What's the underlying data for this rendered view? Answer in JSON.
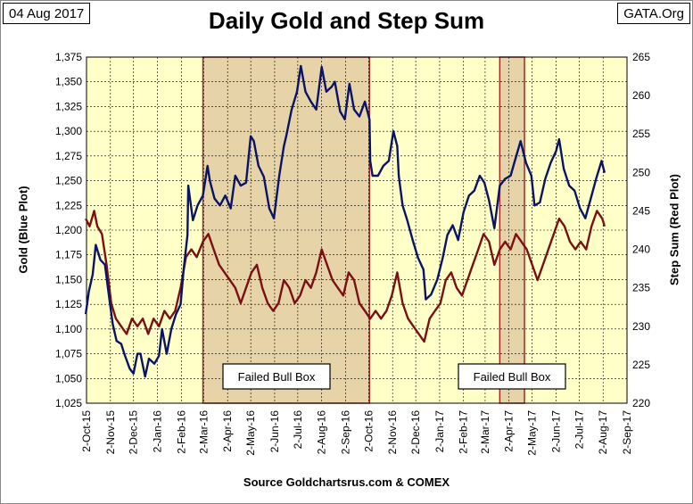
{
  "header": {
    "date": "04 Aug 2017",
    "title": "Daily Gold and Step Sum",
    "source_tag": "GATA.Org"
  },
  "footer": {
    "source": "Source Goldchartsrus.com & COMEX"
  },
  "colors": {
    "plot_bg": "#ffffc8",
    "box_fill": "#e6d3a8",
    "gold_line": "#0a1466",
    "step_line": "#7a1014",
    "box_border": "#a52a2a"
  },
  "chart_data": {
    "type": "line",
    "title": "Daily Gold and Step Sum",
    "x_tick_labels": [
      "2-Oct-15",
      "2-Nov-15",
      "2-Dec-15",
      "2-Jan-16",
      "2-Feb-16",
      "2-Mar-16",
      "2-Apr-16",
      "2-May-16",
      "2-Jun-16",
      "2-Jul-16",
      "2-Aug-16",
      "2-Sep-16",
      "2-Oct-16",
      "2-Nov-16",
      "2-Dec-16",
      "2-Jan-17",
      "2-Feb-17",
      "2-Mar-17",
      "2-Apr-17",
      "2-May-17",
      "2-Jun-17",
      "2-Jul-17",
      "2-Aug-17",
      "2-Sep-17"
    ],
    "y_left": {
      "label": "Gold   (Blue Plot)",
      "range": [
        1025,
        1375
      ],
      "ticks": [
        "1,025",
        "1,050",
        "1,075",
        "1,100",
        "1,125",
        "1,150",
        "1,175",
        "1,200",
        "1,225",
        "1,250",
        "1,275",
        "1,300",
        "1,325",
        "1,350",
        "1,375"
      ]
    },
    "y_right": {
      "label": "Step Sum   (Red Plot)",
      "range": [
        220,
        265
      ],
      "ticks": [
        "220",
        "225",
        "230",
        "235",
        "240",
        "245",
        "250",
        "255",
        "260",
        "265"
      ]
    },
    "grid": true,
    "series": [
      {
        "name": "Gold   (Blue Plot)",
        "axis": "left",
        "points": [
          [
            "2015-10-01",
            1115
          ],
          [
            "2015-10-05",
            1138
          ],
          [
            "2015-10-10",
            1155
          ],
          [
            "2015-10-14",
            1185
          ],
          [
            "2015-10-20",
            1170
          ],
          [
            "2015-10-26",
            1165
          ],
          [
            "2015-10-30",
            1140
          ],
          [
            "2015-11-05",
            1105
          ],
          [
            "2015-11-10",
            1088
          ],
          [
            "2015-11-16",
            1085
          ],
          [
            "2015-11-20",
            1075
          ],
          [
            "2015-11-27",
            1060
          ],
          [
            "2015-12-02",
            1055
          ],
          [
            "2015-12-07",
            1075
          ],
          [
            "2015-12-11",
            1075
          ],
          [
            "2015-12-17",
            1052
          ],
          [
            "2015-12-22",
            1070
          ],
          [
            "2015-12-29",
            1065
          ],
          [
            "2016-01-04",
            1073
          ],
          [
            "2016-01-08",
            1100
          ],
          [
            "2016-01-14",
            1075
          ],
          [
            "2016-01-20",
            1100
          ],
          [
            "2016-01-26",
            1115
          ],
          [
            "2016-02-01",
            1125
          ],
          [
            "2016-02-05",
            1160
          ],
          [
            "2016-02-10",
            1195
          ],
          [
            "2016-02-11",
            1245
          ],
          [
            "2016-02-17",
            1210
          ],
          [
            "2016-02-23",
            1225
          ],
          [
            "2016-03-01",
            1235
          ],
          [
            "2016-03-07",
            1265
          ],
          [
            "2016-03-10",
            1250
          ],
          [
            "2016-03-16",
            1232
          ],
          [
            "2016-03-23",
            1225
          ],
          [
            "2016-03-30",
            1235
          ],
          [
            "2016-04-06",
            1222
          ],
          [
            "2016-04-12",
            1255
          ],
          [
            "2016-04-19",
            1245
          ],
          [
            "2016-04-26",
            1248
          ],
          [
            "2016-05-02",
            1295
          ],
          [
            "2016-05-06",
            1290
          ],
          [
            "2016-05-12",
            1265
          ],
          [
            "2016-05-19",
            1254
          ],
          [
            "2016-05-26",
            1222
          ],
          [
            "2016-06-01",
            1212
          ],
          [
            "2016-06-08",
            1255
          ],
          [
            "2016-06-14",
            1285
          ],
          [
            "2016-06-17",
            1295
          ],
          [
            "2016-06-24",
            1322
          ],
          [
            "2016-07-01",
            1340
          ],
          [
            "2016-07-06",
            1366
          ],
          [
            "2016-07-12",
            1340
          ],
          [
            "2016-07-19",
            1330
          ],
          [
            "2016-07-26",
            1322
          ],
          [
            "2016-08-02",
            1365
          ],
          [
            "2016-08-08",
            1340
          ],
          [
            "2016-08-15",
            1345
          ],
          [
            "2016-08-19",
            1350
          ],
          [
            "2016-08-26",
            1320
          ],
          [
            "2016-09-01",
            1312
          ],
          [
            "2016-09-07",
            1348
          ],
          [
            "2016-09-13",
            1322
          ],
          [
            "2016-09-20",
            1315
          ],
          [
            "2016-09-27",
            1330
          ],
          [
            "2016-10-03",
            1312
          ],
          [
            "2016-10-04",
            1270
          ],
          [
            "2016-10-07",
            1255
          ],
          [
            "2016-10-14",
            1255
          ],
          [
            "2016-10-21",
            1265
          ],
          [
            "2016-10-28",
            1270
          ],
          [
            "2016-11-03",
            1300
          ],
          [
            "2016-11-08",
            1285
          ],
          [
            "2016-11-10",
            1255
          ],
          [
            "2016-11-15",
            1225
          ],
          [
            "2016-11-21",
            1210
          ],
          [
            "2016-11-28",
            1190
          ],
          [
            "2016-12-05",
            1172
          ],
          [
            "2016-12-12",
            1160
          ],
          [
            "2016-12-15",
            1130
          ],
          [
            "2016-12-22",
            1135
          ],
          [
            "2016-12-30",
            1150
          ],
          [
            "2017-01-06",
            1172
          ],
          [
            "2017-01-12",
            1195
          ],
          [
            "2017-01-19",
            1205
          ],
          [
            "2017-01-26",
            1190
          ],
          [
            "2017-02-02",
            1218
          ],
          [
            "2017-02-09",
            1235
          ],
          [
            "2017-02-16",
            1240
          ],
          [
            "2017-02-23",
            1255
          ],
          [
            "2017-03-01",
            1248
          ],
          [
            "2017-03-07",
            1230
          ],
          [
            "2017-03-14",
            1202
          ],
          [
            "2017-03-21",
            1245
          ],
          [
            "2017-03-28",
            1252
          ],
          [
            "2017-04-04",
            1255
          ],
          [
            "2017-04-11",
            1274
          ],
          [
            "2017-04-17",
            1290
          ],
          [
            "2017-04-24",
            1268
          ],
          [
            "2017-05-01",
            1255
          ],
          [
            "2017-05-05",
            1225
          ],
          [
            "2017-05-12",
            1228
          ],
          [
            "2017-05-19",
            1252
          ],
          [
            "2017-05-26",
            1268
          ],
          [
            "2017-06-02",
            1280
          ],
          [
            "2017-06-06",
            1292
          ],
          [
            "2017-06-12",
            1262
          ],
          [
            "2017-06-19",
            1245
          ],
          [
            "2017-06-26",
            1240
          ],
          [
            "2017-07-03",
            1222
          ],
          [
            "2017-07-10",
            1212
          ],
          [
            "2017-07-17",
            1232
          ],
          [
            "2017-07-24",
            1252
          ],
          [
            "2017-07-31",
            1270
          ],
          [
            "2017-08-04",
            1258
          ]
        ]
      },
      {
        "name": "Step Sum   (Red Plot)",
        "axis": "right",
        "points": [
          [
            "2015-10-01",
            244
          ],
          [
            "2015-10-06",
            243
          ],
          [
            "2015-10-12",
            245
          ],
          [
            "2015-10-16",
            243
          ],
          [
            "2015-10-22",
            242
          ],
          [
            "2015-10-28",
            238
          ],
          [
            "2015-11-03",
            233
          ],
          [
            "2015-11-09",
            231
          ],
          [
            "2015-11-16",
            230
          ],
          [
            "2015-11-23",
            229
          ],
          [
            "2015-11-30",
            231
          ],
          [
            "2015-12-07",
            230
          ],
          [
            "2015-12-14",
            231
          ],
          [
            "2015-12-21",
            229
          ],
          [
            "2015-12-28",
            231
          ],
          [
            "2016-01-04",
            230
          ],
          [
            "2016-01-11",
            232
          ],
          [
            "2016-01-18",
            231
          ],
          [
            "2016-01-25",
            232
          ],
          [
            "2016-02-01",
            235
          ],
          [
            "2016-02-08",
            239
          ],
          [
            "2016-02-15",
            240
          ],
          [
            "2016-02-22",
            239
          ],
          [
            "2016-03-01",
            241
          ],
          [
            "2016-03-08",
            242
          ],
          [
            "2016-03-15",
            240
          ],
          [
            "2016-03-22",
            238
          ],
          [
            "2016-03-29",
            237
          ],
          [
            "2016-04-05",
            236
          ],
          [
            "2016-04-12",
            235
          ],
          [
            "2016-04-19",
            233
          ],
          [
            "2016-04-26",
            235
          ],
          [
            "2016-05-03",
            237
          ],
          [
            "2016-05-10",
            238
          ],
          [
            "2016-05-17",
            235
          ],
          [
            "2016-05-24",
            233
          ],
          [
            "2016-05-31",
            232
          ],
          [
            "2016-06-07",
            233
          ],
          [
            "2016-06-14",
            236
          ],
          [
            "2016-06-21",
            235
          ],
          [
            "2016-06-28",
            233
          ],
          [
            "2016-07-05",
            234
          ],
          [
            "2016-07-12",
            236
          ],
          [
            "2016-07-19",
            235
          ],
          [
            "2016-07-26",
            237
          ],
          [
            "2016-08-02",
            240
          ],
          [
            "2016-08-09",
            238
          ],
          [
            "2016-08-16",
            236
          ],
          [
            "2016-08-23",
            235
          ],
          [
            "2016-08-30",
            234
          ],
          [
            "2016-09-06",
            237
          ],
          [
            "2016-09-13",
            236
          ],
          [
            "2016-09-20",
            233
          ],
          [
            "2016-09-27",
            232
          ],
          [
            "2016-10-04",
            231
          ],
          [
            "2016-10-11",
            232
          ],
          [
            "2016-10-18",
            231
          ],
          [
            "2016-10-25",
            232
          ],
          [
            "2016-11-01",
            234
          ],
          [
            "2016-11-08",
            237
          ],
          [
            "2016-11-15",
            233
          ],
          [
            "2016-11-22",
            231
          ],
          [
            "2016-11-29",
            230
          ],
          [
            "2016-12-06",
            229
          ],
          [
            "2016-12-13",
            228
          ],
          [
            "2016-12-20",
            231
          ],
          [
            "2016-12-27",
            232
          ],
          [
            "2017-01-03",
            233
          ],
          [
            "2017-01-10",
            236
          ],
          [
            "2017-01-17",
            237
          ],
          [
            "2017-01-24",
            235
          ],
          [
            "2017-01-31",
            234
          ],
          [
            "2017-02-07",
            236
          ],
          [
            "2017-02-14",
            238
          ],
          [
            "2017-02-21",
            240
          ],
          [
            "2017-02-28",
            242
          ],
          [
            "2017-03-07",
            241
          ],
          [
            "2017-03-14",
            238
          ],
          [
            "2017-03-21",
            240
          ],
          [
            "2017-03-28",
            241
          ],
          [
            "2017-04-04",
            240
          ],
          [
            "2017-04-11",
            242
          ],
          [
            "2017-04-18",
            241
          ],
          [
            "2017-04-25",
            240
          ],
          [
            "2017-05-02",
            238
          ],
          [
            "2017-05-09",
            236
          ],
          [
            "2017-05-16",
            238
          ],
          [
            "2017-05-23",
            240
          ],
          [
            "2017-05-30",
            242
          ],
          [
            "2017-06-06",
            244
          ],
          [
            "2017-06-13",
            243
          ],
          [
            "2017-06-20",
            241
          ],
          [
            "2017-06-27",
            240
          ],
          [
            "2017-07-04",
            241
          ],
          [
            "2017-07-11",
            240
          ],
          [
            "2017-07-18",
            243
          ],
          [
            "2017-07-25",
            245
          ],
          [
            "2017-08-01",
            244
          ],
          [
            "2017-08-04",
            243
          ]
        ]
      }
    ],
    "annotations": [
      {
        "label": "Failed Bull Box",
        "x_start": "2016-03-01",
        "x_end": "2016-10-03"
      },
      {
        "label": "Failed Bull Box",
        "x_start": "2017-03-21",
        "x_end": "2017-04-22"
      }
    ]
  }
}
